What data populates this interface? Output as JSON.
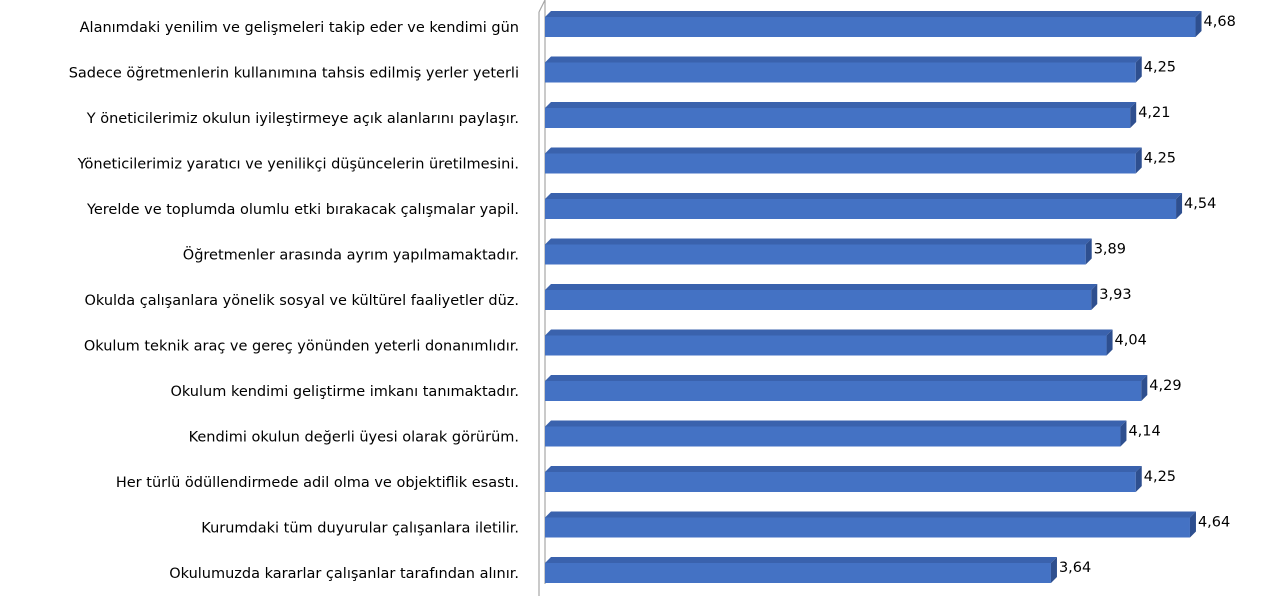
{
  "chart_data": {
    "type": "bar",
    "orientation": "horizontal",
    "style": "3d",
    "title": "",
    "xlabel": "",
    "ylabel": "",
    "xlim": [
      0,
      5
    ],
    "grid": false,
    "legend": "none",
    "bar_color": "#4472C4",
    "categories": [
      "Alanımdaki yenilim ve gelişmeleri takip eder ve kendimi gün",
      "Sadece öğretmenlerin kullanımına tahsis edilmiş yerler yeterli",
      "Y öneticilerimiz okulun iyileştirmeye açık alanlarını paylaşır.",
      "Yöneticilerimiz yaratıcı ve yenilikçi düşüncelerin üretilmesini.",
      "Yerelde ve toplumda olumlu etki bırakacak çalışmalar yapil.",
      "Öğretmenler arasında ayrım yapılmamaktadır.",
      "Okulda çalışanlara yönelik sosyal ve kültürel faaliyetler düz.",
      "Okulum teknik araç ve gereç yönünden yeterli donanımlıdır.",
      "Okulum kendimi geliştirme imkanı tanımaktadır.",
      "Kendimi okulun değerli üyesi olarak görürüm.",
      "Her türlü ödüllendirmede adil olma ve objektiflik esastı.",
      "Kurumdaki tüm duyurular çalışanlara iletilir.",
      "Okulumuzda kararlar çalışanlar tarafından alınır."
    ],
    "values": [
      4.68,
      4.25,
      4.21,
      4.25,
      4.54,
      3.89,
      3.93,
      4.04,
      4.29,
      4.14,
      4.25,
      4.64,
      3.64
    ],
    "value_labels": [
      "4,68",
      "4,25",
      "4,21",
      "4,25",
      "4,54",
      "3,89",
      "3,93",
      "4,04",
      "4,29",
      "4,14",
      "4,25",
      "4,64",
      "3,64"
    ]
  }
}
